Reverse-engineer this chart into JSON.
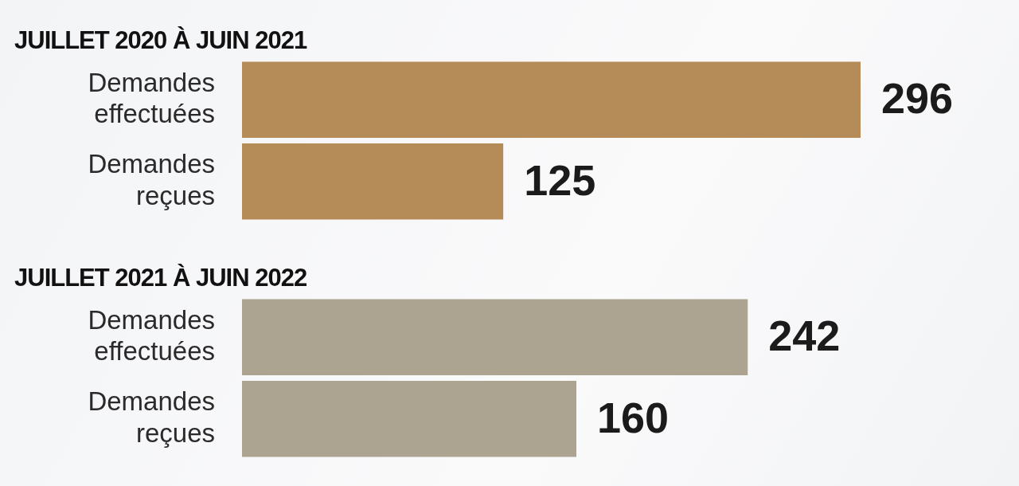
{
  "chart_data": [
    {
      "type": "bar",
      "orientation": "horizontal",
      "title": "JUILLET 2020 À JUIN 2021",
      "categories": [
        "Demandes effectuées",
        "Demandes reçues"
      ],
      "values": [
        296,
        125
      ],
      "color": "#b58b57",
      "data_labels": true
    },
    {
      "type": "bar",
      "orientation": "horizontal",
      "title": "JUILLET 2021 À JUIN 2022",
      "categories": [
        "Demandes effectuées",
        "Demandes reçues"
      ],
      "values": [
        242,
        160
      ],
      "color": "#aca390",
      "data_labels": true
    }
  ]
}
